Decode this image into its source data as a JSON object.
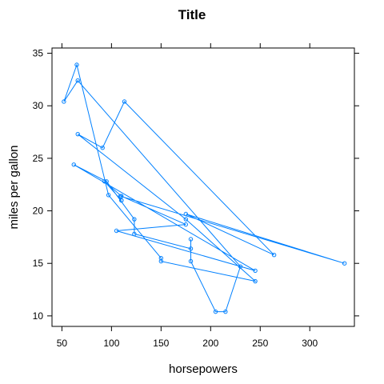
{
  "chart_data": {
    "type": "line",
    "title": "Title",
    "xlabel": "horsepowers",
    "ylabel": "miles per gallon",
    "xlim": [
      40,
      345
    ],
    "ylim": [
      9.0,
      35.5
    ],
    "xticks": [
      50,
      100,
      150,
      200,
      250,
      300
    ],
    "yticks": [
      10,
      15,
      20,
      25,
      30,
      35
    ],
    "grid": false,
    "color": "#0080ff",
    "marker": "open-circle",
    "series": [
      {
        "x": [
          110,
          110,
          93,
          110,
          175,
          105,
          245,
          62,
          95,
          123,
          123,
          180,
          180,
          180,
          205,
          215,
          230,
          66,
          52,
          65,
          97,
          150,
          150,
          245,
          175,
          66,
          91,
          113,
          264,
          175,
          335,
          109
        ],
        "y": [
          21.0,
          21.0,
          22.8,
          21.4,
          18.7,
          18.1,
          14.3,
          24.4,
          22.8,
          19.2,
          17.8,
          16.4,
          17.3,
          15.2,
          10.4,
          10.4,
          14.7,
          32.4,
          30.4,
          33.9,
          21.5,
          15.5,
          15.2,
          13.3,
          19.2,
          27.3,
          26.0,
          30.4,
          15.8,
          19.7,
          15.0,
          21.4
        ]
      }
    ]
  }
}
